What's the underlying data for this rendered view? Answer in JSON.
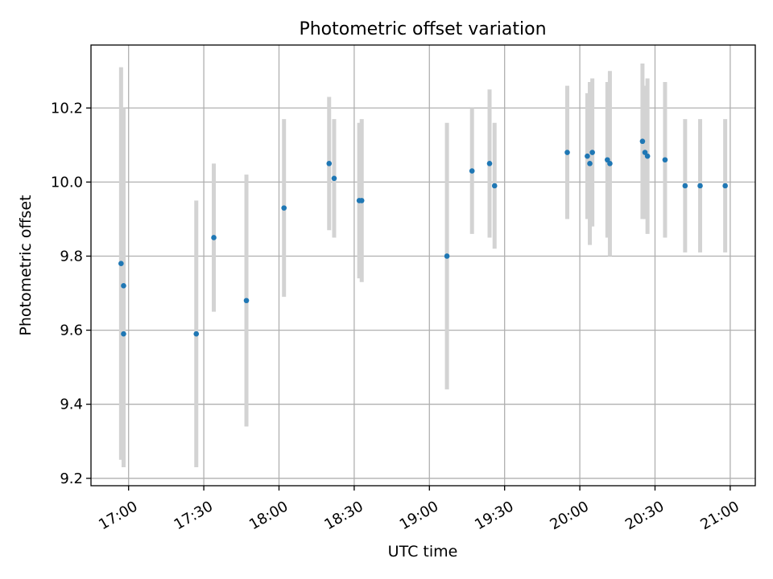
{
  "chart_data": {
    "type": "scatter",
    "title": "Photometric offset variation",
    "xlabel": "UTC time",
    "ylabel": "Photometric offset",
    "x_ticks": [
      "17:00",
      "17:30",
      "18:00",
      "18:30",
      "19:00",
      "19:30",
      "20:00",
      "20:30",
      "21:00"
    ],
    "y_ticks": [
      "9.2",
      "9.4",
      "9.6",
      "9.8",
      "10.0",
      "10.2"
    ],
    "xlim": [
      "16:45",
      "21:10"
    ],
    "ylim": [
      9.18,
      10.37
    ],
    "grid": true,
    "colors": {
      "points": "#1f77b4",
      "errorbars": "#d3d3d3",
      "grid": "#b0b0b0"
    },
    "series": [
      {
        "points": [
          {
            "x": "16:57",
            "y": 9.78,
            "err": 0.53
          },
          {
            "x": "16:58",
            "y": 9.72,
            "err": 0.48
          },
          {
            "x": "16:58",
            "y": 9.59,
            "err": 0.36
          },
          {
            "x": "17:27",
            "y": 9.59,
            "err": 0.36
          },
          {
            "x": "17:34",
            "y": 9.85,
            "err": 0.2
          },
          {
            "x": "17:47",
            "y": 9.68,
            "err": 0.34
          },
          {
            "x": "18:02",
            "y": 9.93,
            "err": 0.24
          },
          {
            "x": "18:20",
            "y": 10.05,
            "err": 0.18
          },
          {
            "x": "18:22",
            "y": 10.01,
            "err": 0.16
          },
          {
            "x": "18:32",
            "y": 9.95,
            "err": 0.21
          },
          {
            "x": "18:33",
            "y": 9.95,
            "err": 0.22
          },
          {
            "x": "19:07",
            "y": 9.8,
            "err": 0.36
          },
          {
            "x": "19:17",
            "y": 10.03,
            "err": 0.17
          },
          {
            "x": "19:24",
            "y": 10.05,
            "err": 0.2
          },
          {
            "x": "19:26",
            "y": 9.99,
            "err": 0.17
          },
          {
            "x": "19:55",
            "y": 10.08,
            "err": 0.18
          },
          {
            "x": "20:03",
            "y": 10.07,
            "err": 0.17
          },
          {
            "x": "20:04",
            "y": 10.05,
            "err": 0.22
          },
          {
            "x": "20:05",
            "y": 10.08,
            "err": 0.2
          },
          {
            "x": "20:11",
            "y": 10.06,
            "err": 0.21
          },
          {
            "x": "20:12",
            "y": 10.05,
            "err": 0.25
          },
          {
            "x": "20:25",
            "y": 10.11,
            "err": 0.21
          },
          {
            "x": "20:26",
            "y": 10.08,
            "err": 0.18
          },
          {
            "x": "20:27",
            "y": 10.07,
            "err": 0.21
          },
          {
            "x": "20:34",
            "y": 10.06,
            "err": 0.21
          },
          {
            "x": "20:42",
            "y": 9.99,
            "err": 0.18
          },
          {
            "x": "20:48",
            "y": 9.99,
            "err": 0.18
          },
          {
            "x": "20:58",
            "y": 9.99,
            "err": 0.18
          }
        ]
      }
    ]
  }
}
